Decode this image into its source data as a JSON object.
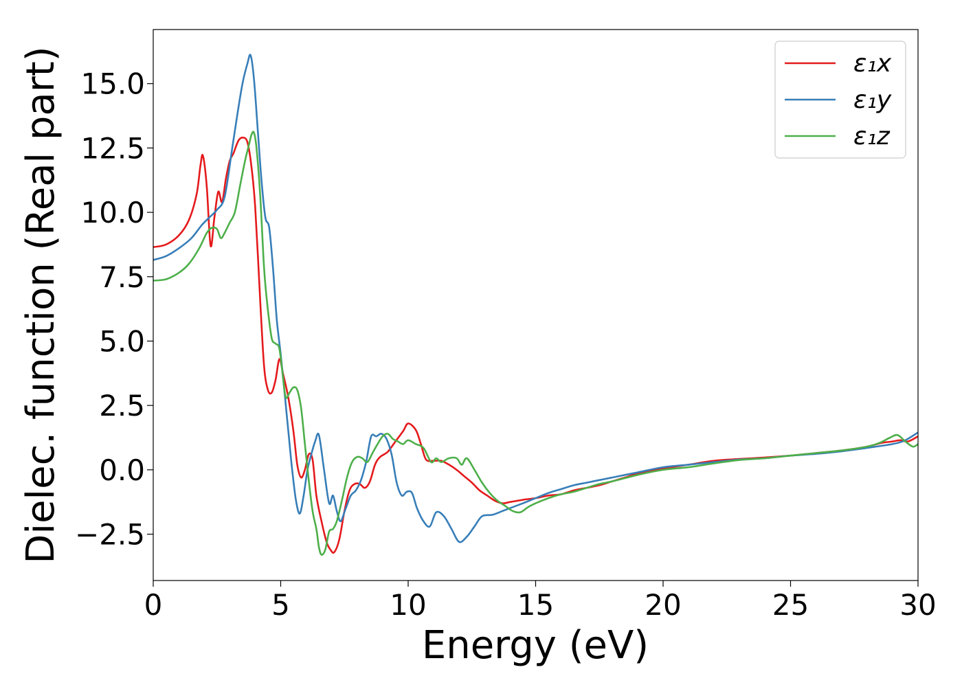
{
  "chart_data": {
    "type": "line",
    "title": "",
    "xlabel": "Energy (eV)",
    "ylabel": "Dielec. function (Real part)",
    "xlim": [
      0,
      30
    ],
    "ylim": [
      -4.3,
      17.1
    ],
    "xticks": [
      0,
      5,
      10,
      15,
      20,
      25,
      30
    ],
    "xtick_labels": [
      "0",
      "5",
      "10",
      "15",
      "20",
      "25",
      "30"
    ],
    "yticks": [
      -2.5,
      0.0,
      2.5,
      5.0,
      7.5,
      10.0,
      12.5,
      15.0
    ],
    "ytick_labels": [
      "−2.5",
      "0.0",
      "2.5",
      "5.0",
      "7.5",
      "10.0",
      "12.5",
      "15.0"
    ],
    "grid": false,
    "legend_position": "top-right",
    "series": [
      {
        "name": "ε₁x",
        "color": "#e41a1c",
        "x": [
          0,
          0.5,
          1.0,
          1.4,
          1.7,
          1.85,
          1.95,
          2.1,
          2.25,
          2.4,
          2.55,
          2.7,
          2.85,
          3.0,
          3.15,
          3.35,
          3.55,
          3.7,
          3.85,
          4.0,
          4.2,
          4.35,
          4.5,
          4.65,
          4.8,
          4.95,
          5.1,
          5.3,
          5.5,
          5.65,
          5.8,
          5.95,
          6.1,
          6.25,
          6.4,
          6.6,
          6.8,
          6.95,
          7.1,
          7.3,
          7.5,
          7.7,
          7.9,
          8.1,
          8.3,
          8.5,
          8.7,
          8.9,
          9.2,
          9.5,
          9.8,
          10.0,
          10.3,
          10.5,
          10.7,
          11.0,
          11.3,
          11.6,
          11.9,
          12.2,
          12.5,
          12.8,
          13.1,
          13.4,
          13.7,
          14.0,
          14.3,
          14.6,
          15.0,
          15.5,
          16.0,
          16.5,
          17.0,
          17.5,
          18.0,
          18.5,
          19.0,
          20.0,
          21.0,
          22.0,
          23.0,
          24.0,
          25.0,
          26.0,
          27.0,
          28.0,
          28.6,
          29.0,
          29.3,
          29.6,
          30.0
        ],
        "y": [
          8.65,
          8.75,
          9.1,
          9.7,
          10.7,
          11.8,
          12.2,
          11.0,
          8.7,
          9.8,
          10.8,
          10.4,
          11.3,
          12.0,
          12.3,
          12.8,
          12.9,
          12.7,
          11.8,
          10.2,
          6.5,
          4.0,
          3.1,
          3.0,
          3.5,
          4.3,
          3.7,
          2.8,
          1.5,
          0.2,
          -0.3,
          0.0,
          0.6,
          0.4,
          -1.0,
          -2.0,
          -2.8,
          -3.1,
          -3.2,
          -2.7,
          -1.6,
          -0.8,
          -0.55,
          -0.55,
          -0.7,
          -0.45,
          0.2,
          0.5,
          0.7,
          1.1,
          1.5,
          1.8,
          1.55,
          1.0,
          0.4,
          0.35,
          0.35,
          0.2,
          0.0,
          -0.25,
          -0.5,
          -0.8,
          -1.0,
          -1.2,
          -1.3,
          -1.25,
          -1.2,
          -1.15,
          -1.1,
          -1.0,
          -0.95,
          -0.8,
          -0.7,
          -0.6,
          -0.45,
          -0.3,
          -0.15,
          0.05,
          0.2,
          0.35,
          0.42,
          0.48,
          0.55,
          0.65,
          0.75,
          0.9,
          1.05,
          1.1,
          1.15,
          1.1,
          1.3
        ]
      },
      {
        "name": "ε₁y",
        "color": "#377eb8",
        "x": [
          0,
          0.5,
          1.0,
          1.5,
          1.9,
          2.2,
          2.5,
          2.8,
          3.1,
          3.3,
          3.5,
          3.7,
          3.82,
          3.95,
          4.1,
          4.25,
          4.4,
          4.55,
          4.7,
          4.85,
          5.0,
          5.15,
          5.3,
          5.45,
          5.6,
          5.75,
          5.9,
          6.05,
          6.2,
          6.35,
          6.5,
          6.7,
          6.9,
          7.05,
          7.2,
          7.35,
          7.55,
          7.75,
          7.95,
          8.15,
          8.35,
          8.55,
          8.75,
          8.95,
          9.15,
          9.35,
          9.55,
          9.75,
          9.95,
          10.15,
          10.35,
          10.6,
          10.85,
          11.1,
          11.4,
          11.7,
          12.0,
          12.3,
          12.6,
          12.9,
          13.3,
          13.7,
          14.1,
          14.5,
          15.0,
          15.5,
          16.0,
          16.5,
          17.0,
          17.5,
          18.0,
          19.0,
          20.0,
          21.0,
          22.0,
          23.0,
          24.0,
          25.0,
          26.0,
          27.0,
          28.0,
          29.0,
          29.5,
          30.0
        ],
        "y": [
          8.15,
          8.3,
          8.6,
          9.0,
          9.5,
          9.8,
          10.1,
          10.6,
          12.5,
          13.8,
          15.0,
          15.8,
          16.1,
          15.2,
          13.2,
          11.2,
          9.8,
          9.4,
          7.8,
          5.8,
          4.5,
          3.0,
          1.5,
          0.0,
          -1.2,
          -1.7,
          -1.0,
          0.0,
          0.6,
          1.1,
          1.35,
          0.0,
          -1.3,
          -1.0,
          -1.6,
          -2.0,
          -1.5,
          -1.0,
          -0.8,
          -0.4,
          0.3,
          1.3,
          1.3,
          1.4,
          1.2,
          0.6,
          -0.5,
          -1.0,
          -0.85,
          -0.9,
          -1.5,
          -2.0,
          -2.2,
          -1.65,
          -1.8,
          -2.3,
          -2.8,
          -2.6,
          -2.2,
          -1.8,
          -1.75,
          -1.6,
          -1.45,
          -1.3,
          -1.1,
          -0.9,
          -0.75,
          -0.6,
          -0.5,
          -0.4,
          -0.3,
          -0.1,
          0.1,
          0.2,
          0.3,
          0.4,
          0.45,
          0.55,
          0.62,
          0.72,
          0.85,
          1.0,
          1.15,
          1.45
        ]
      },
      {
        "name": "ε₁z",
        "color": "#4daf4a",
        "x": [
          0,
          0.5,
          1.0,
          1.4,
          1.8,
          2.1,
          2.3,
          2.5,
          2.65,
          2.8,
          3.0,
          3.2,
          3.4,
          3.6,
          3.75,
          3.85,
          3.95,
          4.05,
          4.2,
          4.35,
          4.5,
          4.65,
          4.8,
          4.95,
          5.1,
          5.2,
          5.35,
          5.5,
          5.65,
          5.8,
          5.95,
          6.1,
          6.25,
          6.4,
          6.5,
          6.6,
          6.75,
          6.9,
          7.05,
          7.2,
          7.4,
          7.6,
          7.8,
          8.0,
          8.2,
          8.4,
          8.6,
          8.8,
          9.0,
          9.2,
          9.4,
          9.6,
          9.8,
          10.0,
          10.3,
          10.6,
          10.9,
          11.1,
          11.3,
          11.6,
          11.9,
          12.1,
          12.3,
          12.6,
          12.9,
          13.2,
          13.5,
          13.8,
          14.1,
          14.4,
          14.7,
          15.0,
          15.5,
          16.0,
          16.5,
          17.0,
          17.5,
          18.0,
          19.0,
          20.0,
          21.0,
          22.0,
          23.0,
          24.0,
          25.0,
          26.0,
          27.0,
          28.0,
          28.5,
          28.9,
          29.2,
          29.5,
          29.8,
          30.0
        ],
        "y": [
          7.35,
          7.4,
          7.65,
          8.0,
          8.6,
          9.2,
          9.4,
          9.35,
          9.0,
          9.2,
          9.6,
          10.0,
          11.0,
          12.0,
          12.6,
          13.0,
          13.1,
          12.5,
          10.6,
          7.8,
          6.2,
          5.1,
          4.9,
          4.7,
          3.5,
          2.8,
          3.0,
          3.2,
          3.1,
          2.4,
          1.0,
          -0.4,
          -1.6,
          -2.3,
          -3.0,
          -3.3,
          -3.1,
          -2.4,
          -2.3,
          -2.0,
          -1.2,
          -0.3,
          0.3,
          0.5,
          0.45,
          0.3,
          0.65,
          1.0,
          1.3,
          1.4,
          1.2,
          1.1,
          1.0,
          1.15,
          1.0,
          0.85,
          0.3,
          0.45,
          0.3,
          0.45,
          0.45,
          0.2,
          0.45,
          0.0,
          -0.5,
          -0.9,
          -1.2,
          -1.4,
          -1.6,
          -1.65,
          -1.45,
          -1.3,
          -1.1,
          -0.95,
          -0.85,
          -0.7,
          -0.55,
          -0.45,
          -0.2,
          0.0,
          0.1,
          0.25,
          0.38,
          0.45,
          0.55,
          0.65,
          0.75,
          0.9,
          1.05,
          1.25,
          1.35,
          1.1,
          0.9,
          1.0
        ]
      }
    ]
  }
}
